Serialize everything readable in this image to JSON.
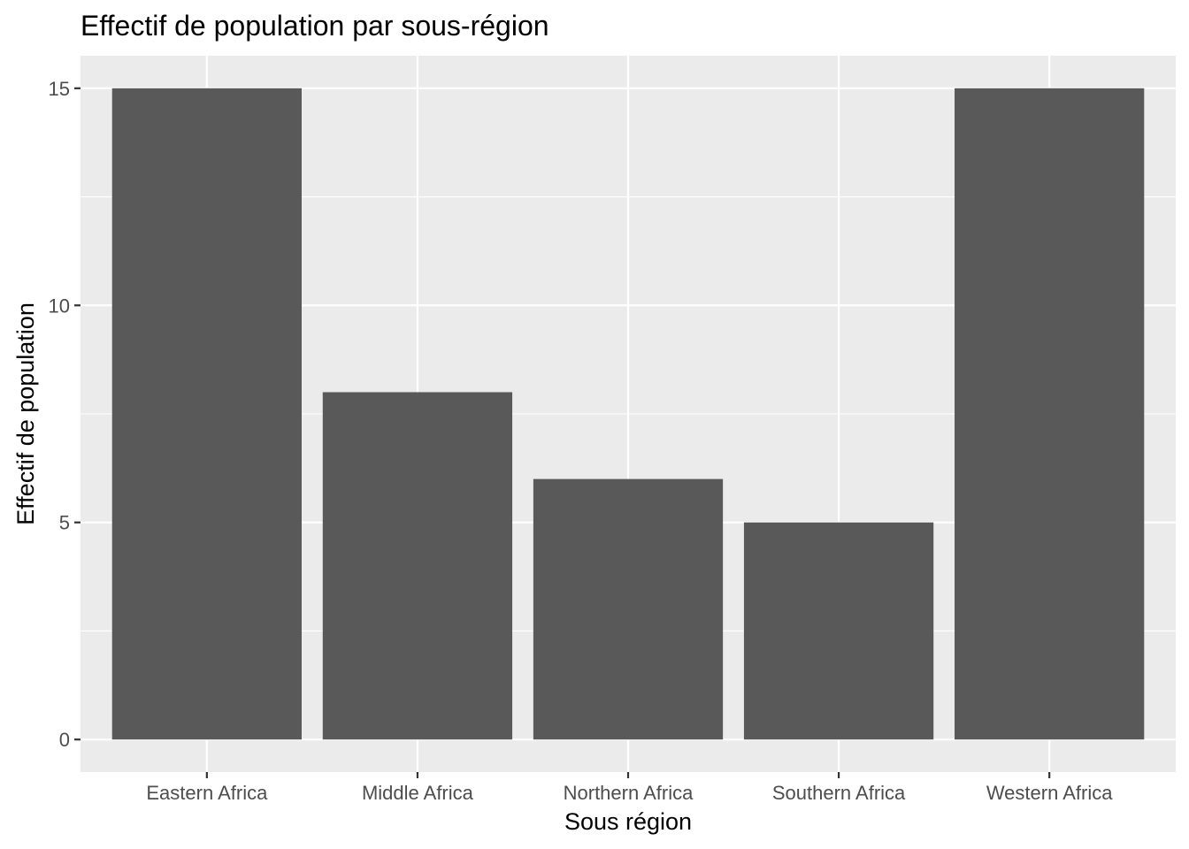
{
  "chart_data": {
    "type": "bar",
    "title": "Effectif de population par sous-région",
    "xlabel": "Sous région",
    "ylabel": "Effectif de population",
    "categories": [
      "Eastern Africa",
      "Middle Africa",
      "Northern Africa",
      "Southern Africa",
      "Western Africa"
    ],
    "values": [
      15,
      8,
      6,
      5,
      15
    ],
    "ylim": [
      -0.75,
      15.75
    ],
    "yticks": [
      0,
      5,
      10,
      15
    ],
    "yticks_labels": [
      "0",
      "5",
      "10",
      "15"
    ],
    "grid": true,
    "legend": "none",
    "colors": {
      "bar": "#595959",
      "panel": "#ebebeb",
      "grid": "#ffffff",
      "tick": "#333333"
    }
  }
}
